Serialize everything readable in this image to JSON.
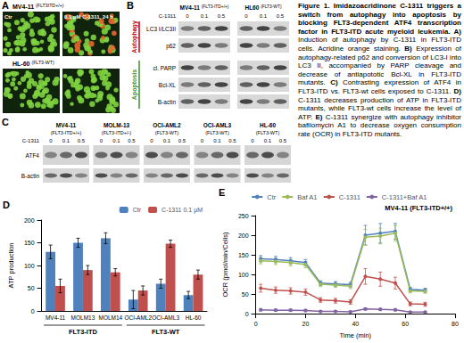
{
  "caption": {
    "label": "Figure 1.",
    "title": "Imidazoacridinone C-1311 triggers a switch from autophagy into apoptosis by blocking FLT3-dependent ATF4 transcription factor in FLT3-ITD acute myeloid leukemia.",
    "items": [
      {
        "label": "A)",
        "text": "Induction of autophagy by C-1311 in FLT3-ITD cells. Acridine orange staining."
      },
      {
        "label": "B)",
        "text": "Expression of autophagy-related p62 and conversion of LC3-I into LC3 II, accompanied by PARP cleavage and decrease of antiapototic Bcl-XL in FLT3-ITD mutants."
      },
      {
        "label": "C)",
        "text": "Contrasting expression of ATF4 in FLT3-ITD vs. FLT3-wt cells exposed to C-1311."
      },
      {
        "label": "D)",
        "text": "C-1311 decreases production of ATP in FLT3-ITD mutants, while FLT3-wt cells increase the level of ATP."
      },
      {
        "label": "E)",
        "text": "C-1311 synergize with autophagy inhibitor bafilomycin A1 to decrease oxygen consumption rate (OCR) in FLT3-ITD mutants."
      }
    ]
  },
  "panels": {
    "A": {
      "panel": "A",
      "columns": [
        "Ctr",
        "0.1 µM C-1311, 24 h"
      ],
      "rows": [
        {
          "cell_line": "MV4-11",
          "genotype": "(FLT3ITD+/+)"
        },
        {
          "cell_line": "HL-60",
          "genotype": "(FLT3-WT)"
        }
      ]
    },
    "B": {
      "panel": "B",
      "dose_label": "C-1311",
      "doses": [
        "0",
        "0.1",
        "0.5"
      ],
      "groups": [
        {
          "cell_line": "MV4-11",
          "genotype": "(FLT3-ITD+/+)"
        },
        {
          "cell_line": "HL60",
          "genotype": "(FLT3-WT)"
        }
      ],
      "sections": [
        {
          "label": "Autophagy",
          "rows": [
            "LC3 I/LC3II",
            "p62"
          ]
        },
        {
          "label": "Apoptosis",
          "rows": [
            "cl. PARP",
            "Bcl-XL",
            "B-actin"
          ]
        }
      ]
    },
    "C": {
      "panel": "C",
      "dose_label": "C-1311",
      "doses": [
        "0",
        "0.1",
        "0.5"
      ],
      "rows": [
        "ATF4",
        "B-actin"
      ],
      "cell_lines": [
        {
          "name": "MV4-11",
          "genotype": "(FLT3-ITD+/+)"
        },
        {
          "name": "MOLM-13",
          "genotype": "(FLT3-ITD+/-)"
        },
        {
          "name": "OCI-AML2",
          "genotype": "(FLT3-WT)"
        },
        {
          "name": "OCI-AML3",
          "genotype": "(FLT3-WT)"
        },
        {
          "name": "HL-60",
          "genotype": "(FLT3-WT)"
        }
      ]
    }
  },
  "chart_data": [
    {
      "panel": "D",
      "type": "bar",
      "categories": [
        "MV4-11",
        "MOLM13",
        "MOLM14",
        "OCI-AML2",
        "OCI-AML3",
        "HL-60"
      ],
      "groups": [
        {
          "label": "FLT3-ITD",
          "members": [
            "MV4-11",
            "MOLM13",
            "MOLM14"
          ]
        },
        {
          "label": "FLT3-WT",
          "members": [
            "OCI-AML2",
            "OCI-AML3",
            "HL-60"
          ]
        }
      ],
      "series": [
        {
          "name": "Ctr",
          "color": "#4f81bd",
          "values": [
            130,
            150,
            160,
            25,
            60,
            35
          ],
          "errors": [
            15,
            10,
            12,
            20,
            10,
            8
          ]
        },
        {
          "name": "C-1311 0.1 µM",
          "color": "#c0504d",
          "values": [
            55,
            90,
            85,
            45,
            148,
            80
          ],
          "errors": [
            15,
            10,
            8,
            10,
            8,
            10
          ]
        }
      ],
      "y_label": "ATP production",
      "ylim": [
        0,
        200
      ],
      "yticks": [
        0,
        50,
        100,
        150,
        200
      ],
      "grid": false,
      "legend": "top-right"
    },
    {
      "panel": "E",
      "type": "line",
      "annotation": "MV4-11 (FLT3-ITD+/+)",
      "marker": "circle",
      "x": [
        2,
        8,
        14,
        20,
        26,
        32,
        38,
        44,
        50,
        56,
        62,
        68
      ],
      "series": [
        {
          "name": "Ctr",
          "color": "#4f81bd",
          "values": [
            140,
            138,
            135,
            130,
            78,
            76,
            74,
            200,
            205,
            210,
            62,
            60
          ],
          "errors": [
            8,
            8,
            8,
            8,
            6,
            6,
            6,
            25,
            25,
            20,
            5,
            5
          ]
        },
        {
          "name": "Baf A1",
          "color": "#9bbb59",
          "values": [
            135,
            133,
            130,
            125,
            75,
            73,
            70,
            195,
            198,
            205,
            58,
            57
          ],
          "errors": [
            8,
            8,
            8,
            8,
            6,
            6,
            6,
            20,
            20,
            20,
            5,
            5
          ]
        },
        {
          "name": "C-1311",
          "color": "#c0504d",
          "values": [
            65,
            60,
            58,
            55,
            35,
            33,
            30,
            95,
            88,
            78,
            25,
            24
          ],
          "errors": [
            10,
            8,
            8,
            8,
            6,
            6,
            6,
            20,
            18,
            15,
            5,
            5
          ]
        },
        {
          "name": "C-1311+Baf A1",
          "color": "#8064a2",
          "values": [
            10,
            9,
            9,
            8,
            6,
            6,
            5,
            12,
            11,
            10,
            4,
            4
          ],
          "errors": [
            3,
            3,
            3,
            3,
            2,
            2,
            2,
            3,
            3,
            3,
            2,
            2
          ]
        }
      ],
      "x_label": "Time (min)",
      "y_label": "OCR (pmol/min/Cells)",
      "xlim": [
        0,
        80
      ],
      "xticks": [
        0,
        20,
        40,
        60,
        80
      ],
      "ylim": [
        0,
        250
      ],
      "yticks": [
        0,
        50,
        100,
        150,
        200,
        250
      ],
      "grid": false,
      "legend": "top"
    }
  ]
}
